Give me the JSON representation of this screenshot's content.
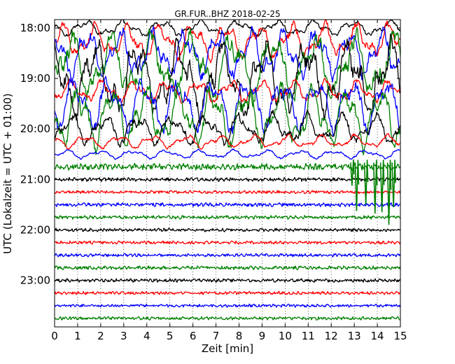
{
  "chart_data": {
    "type": "line",
    "title": "GR.FUR..BHZ 2018-02-25",
    "xlabel": "Zeit  [min]",
    "ylabel": "UTC (Lokalzeit = UTC + 01:00)",
    "xlim": [
      0,
      15
    ],
    "x_ticks": [
      "0",
      "1",
      "2",
      "3",
      "4",
      "5",
      "6",
      "7",
      "8",
      "9",
      "10",
      "11",
      "12",
      "13",
      "14",
      "15"
    ],
    "y_ticks": [
      "18:00",
      "19:00",
      "20:00",
      "21:00",
      "22:00",
      "23:00"
    ],
    "grid": "vertical-dotted",
    "trace_interval_min": 15,
    "start_time": "18:00",
    "colors": [
      "#000000",
      "#ff0000",
      "#0000ff",
      "#008000"
    ],
    "traces": [
      {
        "start": "18:00",
        "color": "#000000",
        "amplitude": 0.7
      },
      {
        "start": "18:15",
        "color": "#ff0000",
        "amplitude": 1.6
      },
      {
        "start": "18:30",
        "color": "#0000ff",
        "amplitude": 2.2
      },
      {
        "start": "18:45",
        "color": "#008000",
        "amplitude": 3.0
      },
      {
        "start": "19:00",
        "color": "#000000",
        "amplitude": 3.4
      },
      {
        "start": "19:15",
        "color": "#ff0000",
        "amplitude": 1.0
      },
      {
        "start": "19:30",
        "color": "#0000ff",
        "amplitude": 2.4
      },
      {
        "start": "19:45",
        "color": "#008000",
        "amplitude": 2.8
      },
      {
        "start": "20:00",
        "color": "#000000",
        "amplitude": 1.4
      },
      {
        "start": "20:15",
        "color": "#ff0000",
        "amplitude": 0.6
      },
      {
        "start": "20:30",
        "color": "#0000ff",
        "amplitude": 0.4
      },
      {
        "start": "20:45",
        "color": "#008000",
        "amplitude": 0.25
      },
      {
        "start": "21:00",
        "color": "#000000",
        "amplitude": 0.15
      },
      {
        "start": "21:15",
        "color": "#ff0000",
        "amplitude": 0.12
      },
      {
        "start": "21:30",
        "color": "#0000ff",
        "amplitude": 0.15
      },
      {
        "start": "21:45",
        "color": "#008000",
        "amplitude": 0.14
      },
      {
        "start": "22:00",
        "color": "#000000",
        "amplitude": 0.13
      },
      {
        "start": "22:15",
        "color": "#ff0000",
        "amplitude": 0.12
      },
      {
        "start": "22:30",
        "color": "#0000ff",
        "amplitude": 0.12
      },
      {
        "start": "22:45",
        "color": "#008000",
        "amplitude": 0.14
      },
      {
        "start": "23:00",
        "color": "#000000",
        "amplitude": 0.13
      },
      {
        "start": "23:15",
        "color": "#ff0000",
        "amplitude": 0.12
      },
      {
        "start": "23:30",
        "color": "#0000ff",
        "amplitude": 0.12
      },
      {
        "start": "23:45",
        "color": "#008000",
        "amplitude": 0.13
      }
    ],
    "spikes": {
      "color": "#008000",
      "trace_start": "20:45",
      "x_minutes": [
        12.9,
        13.1,
        13.5,
        13.9,
        14.2,
        14.5,
        14.7
      ],
      "depth_traces": [
        1.5,
        3.5,
        3.0,
        3.7,
        3.6,
        4.6,
        3.2
      ]
    }
  }
}
